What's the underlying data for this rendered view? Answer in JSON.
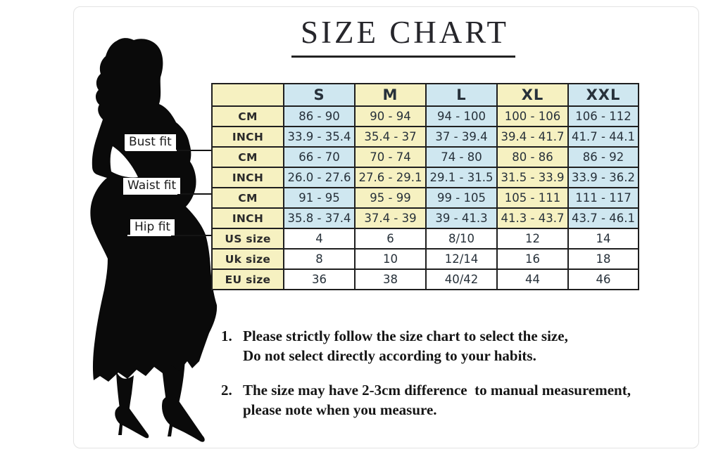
{
  "title": "SIZE CHART",
  "figure": {
    "bust_label": "Bust fit",
    "waist_label": "Waist fit",
    "hip_label": "Hip fit"
  },
  "chart_data": {
    "type": "table",
    "title": "SIZE CHART",
    "columns": [
      "",
      "S",
      "M",
      "L",
      "XL",
      "XXL"
    ],
    "rows": [
      {
        "group": "bust",
        "section": "measure",
        "label": "CM",
        "values": [
          "86 - 90",
          "90 - 94",
          "94 - 100",
          "100 - 106",
          "106 - 112"
        ]
      },
      {
        "group": "bust",
        "section": "measure",
        "label": "INCH",
        "values": [
          "33.9 - 35.4",
          "35.4 - 37",
          "37 - 39.4",
          "39.4 - 41.7",
          "41.7 - 44.1"
        ]
      },
      {
        "group": "waist",
        "section": "measure",
        "label": "CM",
        "values": [
          "66 - 70",
          "70 - 74",
          "74 - 80",
          "80 - 86",
          "86 - 92"
        ]
      },
      {
        "group": "waist",
        "section": "measure",
        "label": "INCH",
        "values": [
          "26.0 - 27.6",
          "27.6 - 29.1",
          "29.1 - 31.5",
          "31.5 - 33.9",
          "33.9 - 36.2"
        ]
      },
      {
        "group": "hip",
        "section": "measure",
        "label": "CM",
        "values": [
          "91 - 95",
          "95 - 99",
          "99 - 105",
          "105 - 111",
          "111 - 117"
        ]
      },
      {
        "group": "hip",
        "section": "measure",
        "label": "INCH",
        "values": [
          "35.8 - 37.4",
          "37.4 - 39",
          "39 - 41.3",
          "41.3 - 43.7",
          "43.7 - 46.1"
        ]
      },
      {
        "group": "size",
        "section": "size",
        "label": "US size",
        "values": [
          "4",
          "6",
          "8/10",
          "12",
          "14"
        ]
      },
      {
        "group": "size",
        "section": "size",
        "label": "Uk size",
        "values": [
          "8",
          "10",
          "12/14",
          "16",
          "18"
        ]
      },
      {
        "group": "size",
        "section": "size",
        "label": "EU size",
        "values": [
          "36",
          "38",
          "40/42",
          "44",
          "46"
        ]
      }
    ]
  },
  "notes": [
    {
      "num": "1.",
      "lines": [
        "Please strictly follow the size chart to select the size,",
        "Do not select directly according to your habits."
      ]
    },
    {
      "num": "2.",
      "lines": [
        "The size may have 2-3cm difference  to manual measurement,",
        "please note when you measure."
      ]
    }
  ],
  "colors": {
    "cell_yellow": "#f6f1c1",
    "cell_blue": "#cfe7f0",
    "cell_white": "#ffffff",
    "table_border": "#1f1f1f",
    "silhouette": "#0a0a0a",
    "title_text": "#26262b",
    "note_text": "#161616"
  }
}
